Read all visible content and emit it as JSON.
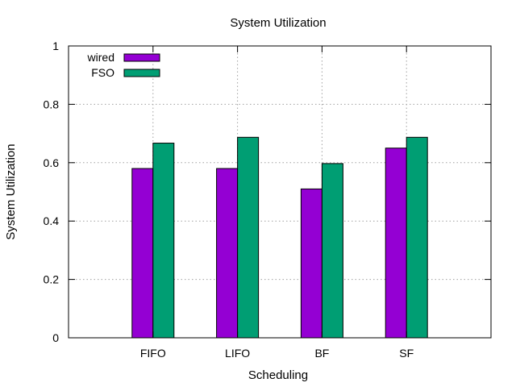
{
  "chart_data": {
    "type": "bar",
    "title": "System Utilization",
    "xlabel": "Scheduling",
    "ylabel": "System Utilization",
    "categories": [
      "FIFO",
      "LIFO",
      "BF",
      "SF"
    ],
    "ylim": [
      0,
      1
    ],
    "yticks": [
      0,
      0.2,
      0.4,
      0.6,
      0.8,
      1
    ],
    "ytick_labels": [
      "0",
      "0.2",
      "0.4",
      "0.6",
      "0.8",
      "1"
    ],
    "grid": true,
    "legend_position": "top-left",
    "series": [
      {
        "name": "wired",
        "color": "#9400d3",
        "values": [
          0.58,
          0.58,
          0.51,
          0.65
        ]
      },
      {
        "name": "FSO",
        "color": "#009e73",
        "values": [
          0.667,
          0.687,
          0.597,
          0.687
        ]
      }
    ]
  }
}
